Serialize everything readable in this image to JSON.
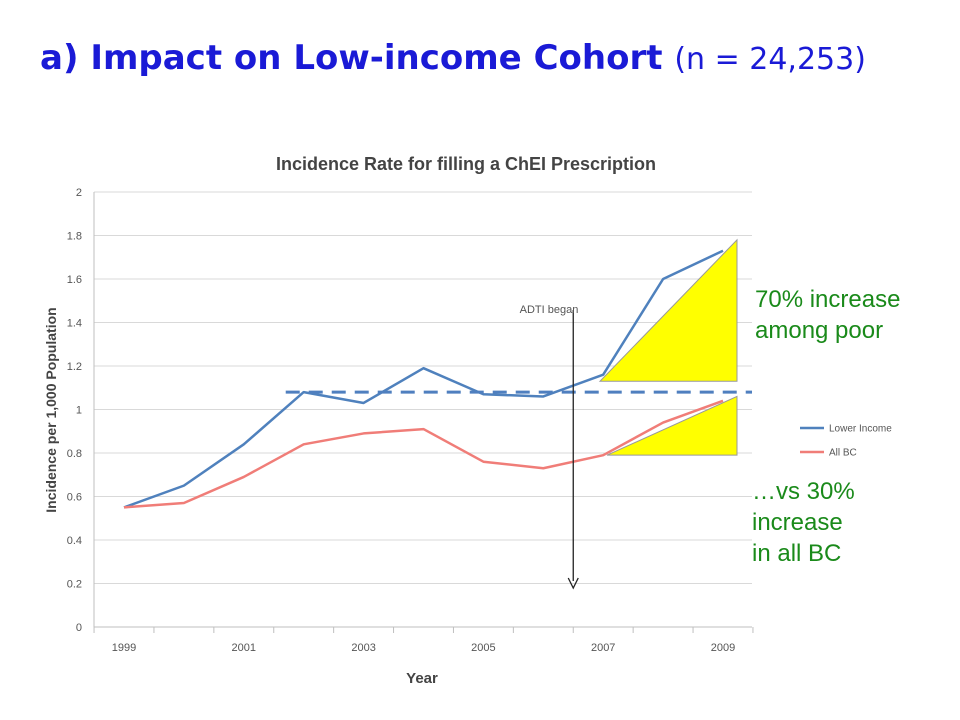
{
  "slide": {
    "title_bold": "a) Impact on Low-income Cohort",
    "title_rest": "(n = 24,253)"
  },
  "annotations": {
    "poor": [
      "70% increase",
      "among poor"
    ],
    "all_bc": [
      "…vs 30%",
      "increase",
      "in all BC"
    ],
    "event_label": "ADTI  began"
  },
  "colors": {
    "title": "#1a1ad6",
    "lower_income": "#4f81bd",
    "all_bc": "#f07d78",
    "baseline": "#4f7fbf",
    "triangle_fill": "#ffff00",
    "annotation_text": "#1a8a1a"
  },
  "chart_data": {
    "type": "line",
    "title": "Incidence Rate for filling a ChEI Prescription",
    "xlabel": "Year",
    "ylabel": "Incidence per 1,000 Population",
    "x": [
      1999,
      2000,
      2001,
      2002,
      2003,
      2004,
      2005,
      2006,
      2007,
      2008,
      2009
    ],
    "x_tick_labels": [
      "1999",
      "2001",
      "2003",
      "2005",
      "2007",
      "2009"
    ],
    "ylim": [
      0,
      2
    ],
    "y_ticks": [
      "0",
      "0.2",
      "0.4",
      "0.6",
      "0.8",
      "1",
      "1.2",
      "1.4",
      "1.6",
      "1.8",
      "2"
    ],
    "grid": true,
    "legend_position": "right",
    "series": [
      {
        "name": "Lower Income",
        "values": [
          0.55,
          0.65,
          0.84,
          1.08,
          1.03,
          1.19,
          1.07,
          1.06,
          1.16,
          1.6,
          1.73
        ]
      },
      {
        "name": "All BC",
        "values": [
          0.55,
          0.57,
          0.69,
          0.84,
          0.89,
          0.91,
          0.76,
          0.73,
          0.79,
          0.94,
          1.04
        ]
      }
    ],
    "event": {
      "x": 2006.5
    },
    "baseline_y": 1.08
  }
}
